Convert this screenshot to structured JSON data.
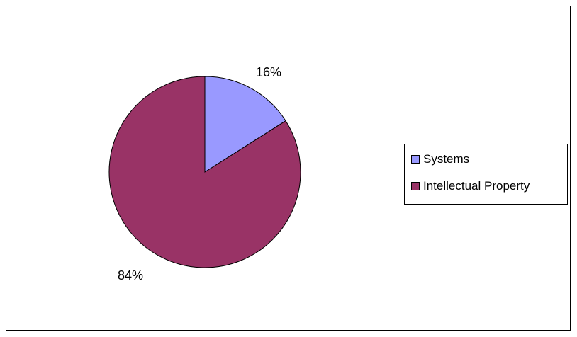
{
  "chart_data": {
    "type": "pie",
    "slices": [
      {
        "label": "Systems",
        "value": 16,
        "display": "16%",
        "color": "#9999ff"
      },
      {
        "label": "Intellectual Property",
        "value": 84,
        "display": "84%",
        "color": "#993366"
      }
    ],
    "start_angle": "12 o'clock, clockwise",
    "legend_position": "right",
    "title": "",
    "outline_color": "#000000"
  }
}
